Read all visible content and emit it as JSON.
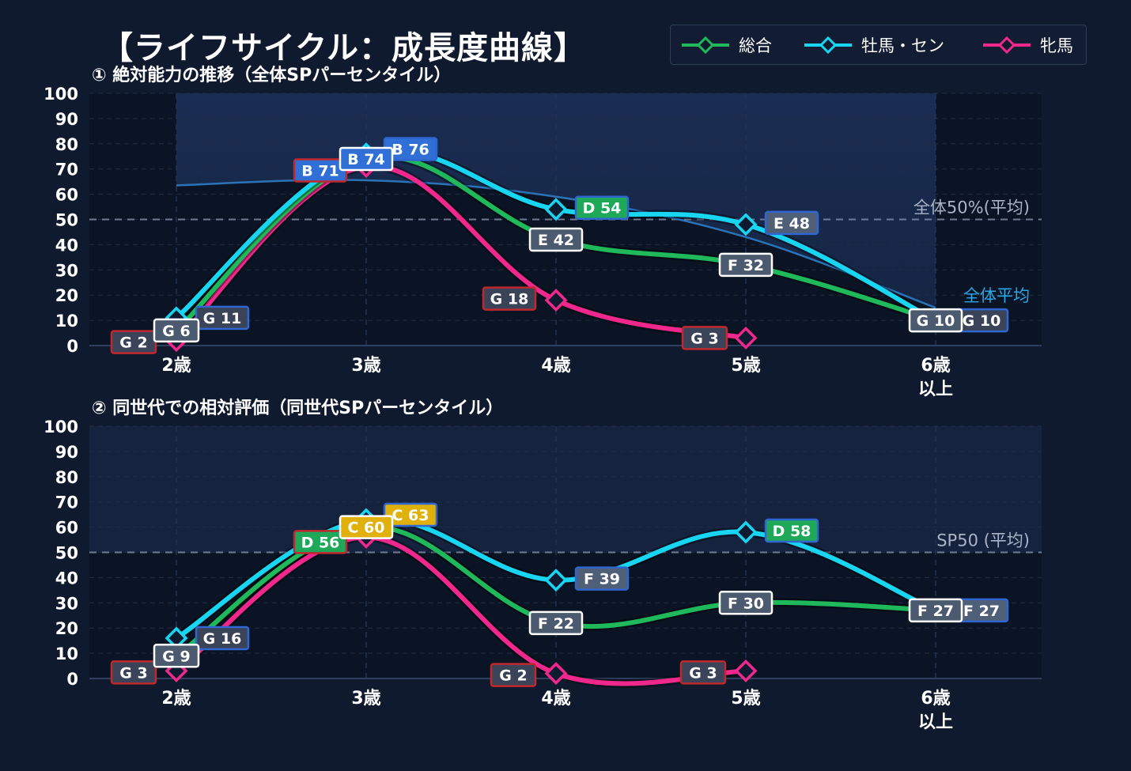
{
  "title": "【ライフサイクル：成長度曲線】",
  "legend": [
    {
      "label": "総合",
      "color": "#1fb85a"
    },
    {
      "label": "牡馬・セン",
      "color": "#18d5f2"
    },
    {
      "label": "牝馬",
      "color": "#f0288c"
    }
  ],
  "chart_data": [
    {
      "type": "line",
      "title": "① 絶対能力の推移（全体SPパーセンタイル）",
      "categories": [
        "2歳",
        "3歳",
        "4歳",
        "5歳",
        "6歳\n以上"
      ],
      "ylim": [
        0,
        100
      ],
      "yticks": [
        0,
        10,
        20,
        30,
        40,
        50,
        60,
        70,
        80,
        90,
        100
      ],
      "grid": true,
      "reference_line": {
        "value": 50,
        "label": "全体50%(平均)"
      },
      "average_curve": {
        "label": "全体平均",
        "values": [
          63.5,
          65.5,
          59,
          43,
          15
        ]
      },
      "series": [
        {
          "name": "総合",
          "values": [
            6,
            74,
            42,
            32,
            10
          ],
          "labels": [
            "G 6",
            "B 74",
            "E 42",
            "F 32",
            "G 10"
          ]
        },
        {
          "name": "牡馬・セン",
          "values": [
            11,
            76,
            54,
            48,
            10
          ],
          "labels": [
            "G 11",
            "B 76",
            "D 54",
            "E 48",
            "G 10"
          ]
        },
        {
          "name": "牝馬",
          "values": [
            2,
            71,
            18,
            3,
            null
          ],
          "labels": [
            "G 2",
            "B 71",
            "G 18",
            "G 3",
            ""
          ]
        }
      ]
    },
    {
      "type": "line",
      "title": "② 同世代での相対評価（同世代SPパーセンタイル）",
      "categories": [
        "2歳",
        "3歳",
        "4歳",
        "5歳",
        "6歳\n以上"
      ],
      "ylim": [
        0,
        100
      ],
      "yticks": [
        0,
        10,
        20,
        30,
        40,
        50,
        60,
        70,
        80,
        90,
        100
      ],
      "grid": true,
      "reference_line": {
        "value": 50,
        "label": "SP50 (平均)"
      },
      "series": [
        {
          "name": "総合",
          "values": [
            9,
            60,
            22,
            30,
            27
          ],
          "labels": [
            "G 9",
            "C 60",
            "F 22",
            "F 30",
            "F 27"
          ]
        },
        {
          "name": "牡馬・セン",
          "values": [
            16,
            63,
            39,
            58,
            27
          ],
          "labels": [
            "G 16",
            "C 63",
            "F 39",
            "D 58",
            "F 27"
          ]
        },
        {
          "name": "牝馬",
          "values": [
            3,
            56,
            2,
            3,
            null
          ],
          "labels": [
            "G 3",
            "D 56",
            "G 2",
            "G 3",
            ""
          ]
        }
      ]
    }
  ]
}
